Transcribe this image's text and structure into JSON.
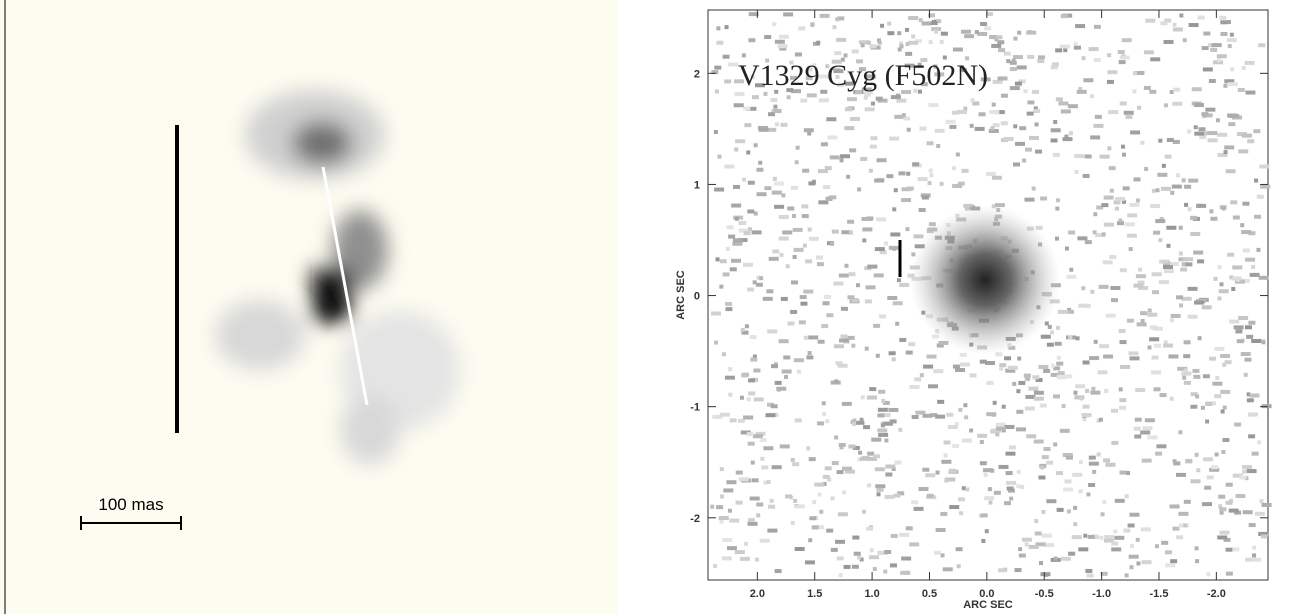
{
  "left_panel": {
    "scale_label": "100 mas"
  },
  "right_panel": {
    "title": "V1329 Cyg (F502N)",
    "xlabel": "ARC SEC",
    "ylabel": "ARC SEC",
    "xlim": [
      2.43,
      -2.45
    ],
    "ylim": [
      -2.56,
      2.57
    ],
    "xticks": [
      {
        "value": 2.0,
        "label": "2.0"
      },
      {
        "value": 1.5,
        "label": "1.5"
      },
      {
        "value": 1.0,
        "label": "1.0"
      },
      {
        "value": 0.5,
        "label": "0.5"
      },
      {
        "value": 0.0,
        "label": "0.0"
      },
      {
        "value": -0.5,
        "label": "-0.5"
      },
      {
        "value": -1.0,
        "label": "-1.0"
      },
      {
        "value": -1.5,
        "label": "-1.5"
      },
      {
        "value": -2.0,
        "label": "-2.0"
      }
    ],
    "yticks": [
      2,
      1,
      0,
      -1,
      -2
    ]
  }
}
